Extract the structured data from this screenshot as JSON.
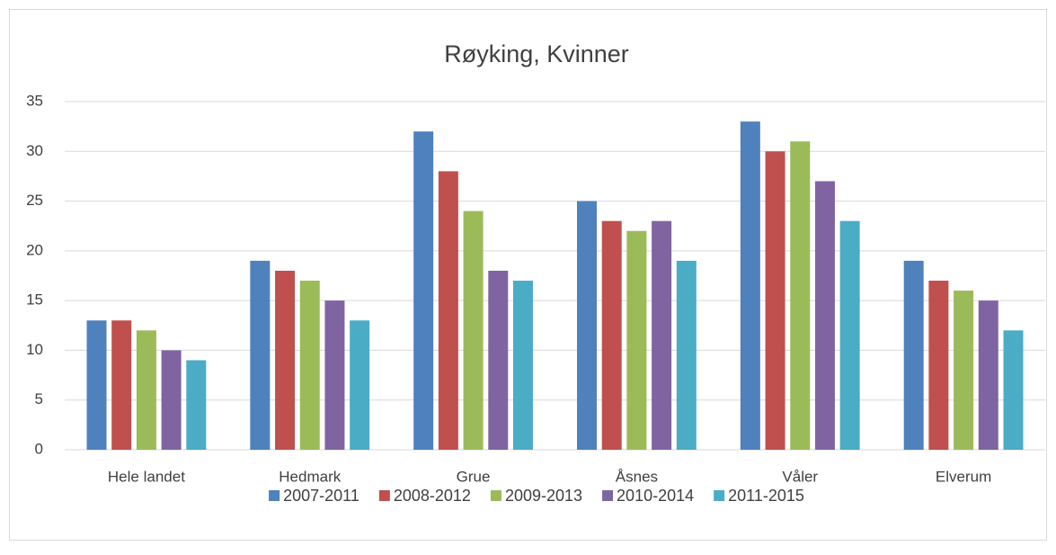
{
  "chart_data": {
    "type": "bar",
    "title": "Røyking, Kvinner",
    "categories": [
      "Hele landet",
      "Hedmark",
      "Grue",
      "Åsnes",
      "Våler",
      "Elverum"
    ],
    "series": [
      {
        "name": "2007-2011",
        "color": "#4f81bd",
        "values": [
          13,
          19,
          32,
          25,
          33,
          19
        ]
      },
      {
        "name": "2008-2012",
        "color": "#c0504d",
        "values": [
          13,
          18,
          28,
          23,
          30,
          17
        ]
      },
      {
        "name": "2009-2013",
        "color": "#9bbb59",
        "values": [
          12,
          17,
          24,
          22,
          31,
          16
        ]
      },
      {
        "name": "2010-2014",
        "color": "#8064a2",
        "values": [
          10,
          15,
          18,
          23,
          27,
          15
        ]
      },
      {
        "name": "2011-2015",
        "color": "#4bacc6",
        "values": [
          9,
          13,
          17,
          19,
          23,
          12
        ]
      }
    ],
    "ylim": [
      0,
      35
    ],
    "yticks": [
      0,
      5,
      10,
      15,
      20,
      25,
      30,
      35
    ],
    "grid": true,
    "legend": "bottom"
  }
}
